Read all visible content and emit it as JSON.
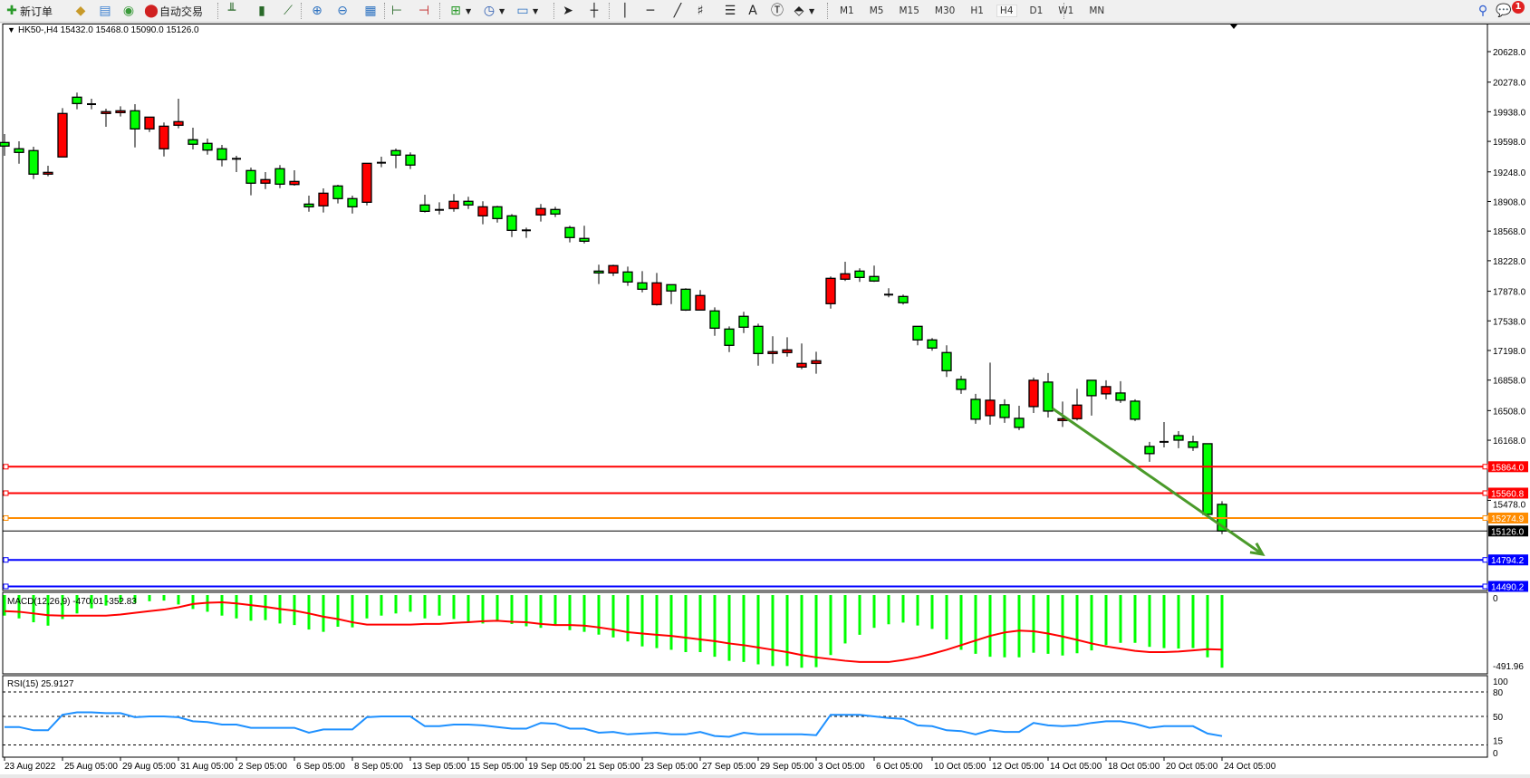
{
  "toolbar": {
    "new_order": "新订单",
    "auto_trading": "自动交易",
    "timeframes": [
      "M1",
      "M5",
      "M15",
      "M30",
      "H1",
      "H4",
      "D1",
      "W1",
      "MN"
    ],
    "active_timeframe": "H4",
    "notification_count": "1",
    "icons": [
      "new-order-icon",
      "gold-bars-icon",
      "market-watch-icon",
      "signals-icon",
      "auto-trading-icon",
      "bar-chart-icon",
      "candlestick-icon",
      "line-chart-icon",
      "zoom-in-icon",
      "zoom-out-icon",
      "tile-windows-icon",
      "chart-shift-icon",
      "autoscroll-icon",
      "new-chart-icon",
      "periods-clock-icon",
      "indicators-icon",
      "cursor-icon",
      "crosshair-icon",
      "vertical-line-icon",
      "horizontal-line-icon",
      "trendline-icon",
      "fibonacci-icon",
      "fibo-fan-icon",
      "text-icon",
      "text-label-icon",
      "shapes-icon",
      "search-icon",
      "chat-icon"
    ]
  },
  "chart": {
    "header": "HK50-,H4  15432.0 15468.0 15090.0 15126.0",
    "colors": {
      "bear_body": "#00ff00",
      "bull_body": "#ff0000",
      "outline": "#000000",
      "trendline": "#4a9a2a",
      "macd_hist": "#00ff00",
      "macd_signal": "#ff0000",
      "rsi": "#1e90ff"
    },
    "price_axis": [
      "20628.0",
      "20278.0",
      "19938.0",
      "19598.0",
      "19248.0",
      "18908.0",
      "18568.0",
      "18228.0",
      "17878.0",
      "17538.0",
      "17198.0",
      "16858.0",
      "16508.0",
      "16168.0",
      "15478.0"
    ],
    "levels": [
      {
        "price": 15864.0,
        "label": "15864.0",
        "color": "#ff0000"
      },
      {
        "price": 15560.8,
        "label": "15560.8",
        "color": "#ff0000"
      },
      {
        "price": 15274.9,
        "label": "15274.9",
        "color": "#ff8c00"
      },
      {
        "price": 15126.0,
        "label": "15126.0",
        "color": "#000000"
      },
      {
        "price": 14794.2,
        "label": "14794.2",
        "color": "#0000ff"
      },
      {
        "price": 14490.2,
        "label": "14490.2",
        "color": "#0000ff"
      }
    ],
    "trendline": {
      "start": {
        "bar": 72.3,
        "price": 16532
      },
      "end": {
        "bar": 86.8,
        "price": 14859
      },
      "arrow": true
    },
    "time_axis": [
      "23 Aug 2022",
      "25 Aug 05:00",
      "29 Aug 05:00",
      "31 Aug 05:00",
      "2 Sep 05:00",
      "6 Sep 05:00",
      "8 Sep 05:00",
      "13 Sep 05:00",
      "15 Sep 05:00",
      "19 Sep 05:00",
      "21 Sep 05:00",
      "23 Sep 05:00",
      "27 Sep 05:00",
      "29 Sep 05:00",
      "3 Oct 05:00",
      "6 Oct 05:00",
      "10 Oct 05:00",
      "12 Oct 05:00",
      "14 Oct 05:00",
      "18 Oct 05:00",
      "20 Oct 05:00",
      "24 Oct 05:00"
    ],
    "candles_ohlc": [
      [
        19585,
        19682,
        19433,
        19544
      ],
      [
        19513,
        19599,
        19342,
        19471
      ],
      [
        19492,
        19537,
        19166,
        19222
      ],
      [
        19222,
        19318,
        19197,
        19242
      ],
      [
        19419,
        19980,
        19419,
        19918
      ],
      [
        20105,
        20157,
        19966,
        20032
      ],
      [
        20025,
        20088,
        19966,
        20025
      ],
      [
        19918,
        19973,
        19765,
        19939
      ],
      [
        19928,
        20001,
        19883,
        19949
      ],
      [
        19949,
        20025,
        19529,
        19741
      ],
      [
        19741,
        19876,
        19706,
        19876
      ],
      [
        19513,
        19814,
        19425,
        19772
      ],
      [
        19783,
        20088,
        19748,
        19824
      ],
      [
        19617,
        19755,
        19505,
        19565
      ],
      [
        19575,
        19630,
        19446,
        19498
      ],
      [
        19513,
        19557,
        19311,
        19388
      ],
      [
        19398,
        19433,
        19245,
        19398
      ],
      [
        19263,
        19297,
        18979,
        19118
      ],
      [
        19118,
        19245,
        19051,
        19159
      ],
      [
        19284,
        19326,
        19061,
        19107
      ],
      [
        19103,
        19266,
        19089,
        19138
      ],
      [
        18878,
        18975,
        18791,
        18847
      ],
      [
        18858,
        19058,
        18781,
        19003
      ],
      [
        19086,
        19100,
        18885,
        18941
      ],
      [
        18941,
        18975,
        18770,
        18847
      ],
      [
        18899,
        19346,
        18864,
        19346
      ],
      [
        19353,
        19422,
        19301,
        19353
      ],
      [
        19492,
        19516,
        19290,
        19440
      ],
      [
        19440,
        19471,
        19280,
        19326
      ],
      [
        18868,
        18986,
        18781,
        18795
      ],
      [
        18812,
        18899,
        18760,
        18812
      ],
      [
        18827,
        18993,
        18791,
        18910
      ],
      [
        18910,
        18962,
        18822,
        18868
      ],
      [
        18743,
        18910,
        18646,
        18847
      ],
      [
        18847,
        18858,
        18666,
        18712
      ],
      [
        18743,
        18764,
        18500,
        18577
      ],
      [
        18577,
        18608,
        18490,
        18577
      ],
      [
        18754,
        18879,
        18677,
        18827
      ],
      [
        18816,
        18847,
        18729,
        18764
      ],
      [
        18608,
        18629,
        18438,
        18494
      ],
      [
        18484,
        18629,
        18427,
        18452
      ],
      [
        18109,
        18182,
        17960,
        18088
      ],
      [
        18088,
        18182,
        18053,
        18172
      ],
      [
        18099,
        18161,
        17939,
        17984
      ],
      [
        17974,
        18109,
        17866,
        17901
      ],
      [
        17725,
        18088,
        17714,
        17974
      ],
      [
        17953,
        17953,
        17731,
        17881
      ],
      [
        17901,
        17912,
        17652,
        17662
      ],
      [
        17662,
        17891,
        17662,
        17829
      ],
      [
        17652,
        17693,
        17367,
        17454
      ],
      [
        17444,
        17475,
        17180,
        17257
      ],
      [
        17590,
        17642,
        17398,
        17465
      ],
      [
        17475,
        17506,
        17024,
        17163
      ],
      [
        17163,
        17361,
        17045,
        17184
      ],
      [
        17174,
        17350,
        17128,
        17205
      ],
      [
        17008,
        17278,
        16983,
        17049
      ],
      [
        17049,
        17184,
        16931,
        17080
      ],
      [
        17735,
        18047,
        17679,
        18026
      ],
      [
        18016,
        18216,
        17995,
        18078
      ],
      [
        18109,
        18141,
        17985,
        18036
      ],
      [
        18047,
        18172,
        17985,
        17995
      ],
      [
        17839,
        17912,
        17808,
        17839
      ],
      [
        17818,
        17839,
        17725,
        17746
      ],
      [
        17475,
        17475,
        17257,
        17319
      ],
      [
        17319,
        17340,
        17195,
        17226
      ],
      [
        17174,
        17257,
        16893,
        16966
      ],
      [
        16866,
        16908,
        16700,
        16752
      ],
      [
        16637,
        16700,
        16357,
        16409
      ],
      [
        16450,
        17059,
        16346,
        16627
      ],
      [
        16575,
        16637,
        16367,
        16429
      ],
      [
        16419,
        16564,
        16284,
        16315
      ],
      [
        16554,
        16887,
        16481,
        16856
      ],
      [
        16835,
        16939,
        16429,
        16502
      ],
      [
        16394,
        16612,
        16321,
        16415
      ],
      [
        16415,
        16758,
        16394,
        16571
      ],
      [
        16856,
        16856,
        16450,
        16679
      ],
      [
        16700,
        16856,
        16637,
        16783
      ],
      [
        16710,
        16845,
        16596,
        16627
      ],
      [
        16616,
        16637,
        16388,
        16409
      ],
      [
        16097,
        16149,
        15920,
        16014
      ],
      [
        16149,
        16377,
        16086,
        16149
      ],
      [
        16221,
        16273,
        16076,
        16169
      ],
      [
        16149,
        16221,
        16045,
        16086
      ],
      [
        16128,
        16128,
        15306,
        15317
      ],
      [
        15432,
        15468,
        15090,
        15126
      ]
    ]
  },
  "macd": {
    "label": "MACD(12,26,9) -470.01 -352.83",
    "axis": [
      "0",
      "-491.96"
    ],
    "range": [
      -491.96,
      0
    ],
    "histogram": [
      -133,
      -151,
      -176,
      -198,
      -155,
      -119,
      -86,
      -68,
      -47,
      -50,
      -40,
      -36,
      -61,
      -90,
      -108,
      -133,
      -151,
      -166,
      -162,
      -184,
      -194,
      -223,
      -238,
      -205,
      -209,
      -151,
      -133,
      -119,
      -108,
      -151,
      -133,
      -155,
      -176,
      -184,
      -166,
      -187,
      -202,
      -212,
      -194,
      -227,
      -238,
      -256,
      -274,
      -300,
      -332,
      -343,
      -354,
      -369,
      -369,
      -399,
      -425,
      -433,
      -448,
      -459,
      -459,
      -470,
      -466,
      -388,
      -313,
      -257,
      -212,
      -189,
      -178,
      -197,
      -219,
      -287,
      -354,
      -380,
      -399,
      -403,
      -403,
      -373,
      -380,
      -391,
      -376,
      -358,
      -324,
      -309,
      -309,
      -335,
      -343,
      -346,
      -343,
      -403,
      -470.01
    ],
    "signal": [
      -104,
      -108,
      -119,
      -130,
      -133,
      -133,
      -133,
      -133,
      -126,
      -115,
      -104,
      -94,
      -79,
      -58,
      -50,
      -47,
      -54,
      -65,
      -76,
      -90,
      -101,
      -119,
      -140,
      -155,
      -176,
      -191,
      -191,
      -191,
      -191,
      -187,
      -187,
      -180,
      -176,
      -169,
      -166,
      -173,
      -176,
      -187,
      -194,
      -194,
      -198,
      -209,
      -223,
      -240,
      -249,
      -257,
      -264,
      -275,
      -287,
      -298,
      -313,
      -324,
      -339,
      -354,
      -369,
      -388,
      -403,
      -414,
      -425,
      -433,
      -433,
      -433,
      -420,
      -403,
      -380,
      -354,
      -324,
      -294,
      -264,
      -242,
      -230,
      -234,
      -249,
      -268,
      -290,
      -313,
      -332,
      -346,
      -361,
      -369,
      -369,
      -365,
      -358,
      -350,
      -352.83
    ]
  },
  "rsi": {
    "label": "RSI(15) 25.9127",
    "axis": [
      "100",
      "80",
      "50",
      "15",
      "0"
    ],
    "levels": [
      80,
      50,
      15
    ],
    "values": [
      37,
      37,
      33,
      33,
      52,
      55,
      55,
      54,
      54,
      49,
      50,
      50,
      49,
      44,
      43,
      40,
      40,
      36,
      36,
      36,
      36,
      30,
      34,
      34,
      34,
      49,
      50,
      50,
      50,
      38,
      38,
      40,
      40,
      39,
      37,
      35,
      35,
      42,
      41,
      35,
      35,
      30,
      31,
      28,
      29,
      30,
      28,
      28,
      31,
      26,
      25,
      30,
      28,
      28,
      28,
      28,
      27,
      52,
      52,
      52,
      50,
      48,
      47,
      39,
      38,
      33,
      32,
      28,
      33,
      31,
      31,
      42,
      39,
      38,
      39,
      42,
      44,
      44,
      41,
      36,
      38,
      38,
      38,
      29,
      25.91
    ]
  }
}
